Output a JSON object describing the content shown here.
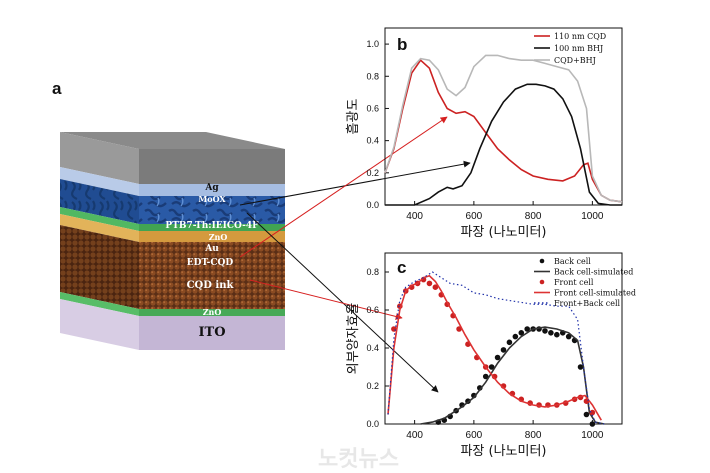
{
  "panel_labels": {
    "a": "a",
    "b": "b",
    "c": "c"
  },
  "stack_layers": [
    {
      "key": "ag",
      "label": "Ag",
      "color": "#8c8c8c",
      "text_color": "#111111"
    },
    {
      "key": "moox",
      "label": "MoOX",
      "color": "#a9bfe2",
      "text_color": "#ffffff"
    },
    {
      "key": "active",
      "label": "PTB7-Th:IEICO-4F",
      "color": "#2b5aa8",
      "text_color": "#ffffff"
    },
    {
      "key": "zno_top",
      "label": "ZnO",
      "color": "#49b45a",
      "text_color": "#ffffff"
    },
    {
      "key": "au",
      "label": "Au",
      "color": "#d9a64a",
      "text_color": "#ffffff"
    },
    {
      "key": "edt",
      "label": "EDT-CQD",
      "color": "#6b3a1f",
      "text_color": "#ffffff"
    },
    {
      "key": "cqd",
      "label": "CQD ink",
      "color": "#6b3a1f",
      "text_color": "#ffffff"
    },
    {
      "key": "zno_bottom",
      "label": "ZnO",
      "color": "#4db85e",
      "text_color": "#ffffff"
    },
    {
      "key": "ito",
      "label": "ITO",
      "color": "#cbbfd9",
      "text_color": "#111111"
    }
  ],
  "chart_data": [
    {
      "id": "b",
      "type": "line",
      "xlabel": "파장 (나노미터)",
      "ylabel": "흡광도",
      "xlim": [
        300,
        1100
      ],
      "ylim": [
        0,
        1.1
      ],
      "xticks": [
        400,
        600,
        800,
        1000
      ],
      "yticks": [
        0,
        0.2,
        0.4,
        0.6,
        0.8,
        1.0
      ],
      "grid": false,
      "legend_position": "top-right",
      "series": [
        {
          "name": "110 nm CQD",
          "color": "#cc2222",
          "style": "solid",
          "x": [
            300,
            330,
            360,
            390,
            420,
            450,
            480,
            510,
            540,
            570,
            600,
            640,
            680,
            720,
            760,
            800,
            850,
            900,
            940,
            970,
            985,
            1000,
            1030,
            1060,
            1100
          ],
          "y": [
            0.2,
            0.35,
            0.6,
            0.82,
            0.9,
            0.85,
            0.7,
            0.6,
            0.57,
            0.58,
            0.55,
            0.45,
            0.35,
            0.28,
            0.22,
            0.18,
            0.16,
            0.15,
            0.18,
            0.25,
            0.26,
            0.16,
            0.06,
            0.03,
            0.02
          ]
        },
        {
          "name": "100 nm BHJ",
          "color": "#111111",
          "style": "solid",
          "x": [
            300,
            400,
            450,
            480,
            510,
            530,
            560,
            590,
            620,
            660,
            700,
            740,
            780,
            810,
            840,
            870,
            900,
            930,
            960,
            990,
            1020,
            1060,
            1100
          ],
          "y": [
            0,
            0,
            0.04,
            0.08,
            0.11,
            0.1,
            0.12,
            0.2,
            0.35,
            0.52,
            0.64,
            0.72,
            0.75,
            0.75,
            0.74,
            0.72,
            0.66,
            0.55,
            0.35,
            0.08,
            0.01,
            0,
            0
          ]
        },
        {
          "name": "CQD+BHJ",
          "color": "#b8b8b8",
          "style": "solid",
          "x": [
            300,
            330,
            360,
            390,
            420,
            450,
            480,
            510,
            540,
            570,
            600,
            640,
            680,
            720,
            760,
            800,
            840,
            880,
            920,
            950,
            980,
            1000,
            1030,
            1060,
            1100
          ],
          "y": [
            0.2,
            0.36,
            0.62,
            0.85,
            0.91,
            0.9,
            0.84,
            0.72,
            0.68,
            0.73,
            0.86,
            0.93,
            0.93,
            0.91,
            0.9,
            0.9,
            0.88,
            0.86,
            0.84,
            0.77,
            0.6,
            0.18,
            0.06,
            0.03,
            0.02
          ]
        }
      ]
    },
    {
      "id": "c",
      "type": "line",
      "xlabel": "파장 (나노미터)",
      "ylabel": "외부양자효율",
      "xlim": [
        300,
        1100
      ],
      "ylim": [
        0,
        0.9
      ],
      "xticks": [
        400,
        600,
        800,
        1000
      ],
      "yticks": [
        0,
        0.2,
        0.4,
        0.6,
        0.8
      ],
      "grid": false,
      "legend_position": "top-right",
      "series": [
        {
          "name": "Back cell",
          "color": "#111111",
          "style": "markers",
          "x": [
            480,
            500,
            520,
            540,
            560,
            580,
            600,
            620,
            640,
            660,
            680,
            700,
            720,
            740,
            760,
            780,
            800,
            820,
            840,
            860,
            880,
            900,
            920,
            940,
            960,
            980,
            1000
          ],
          "y": [
            0.01,
            0.02,
            0.04,
            0.07,
            0.1,
            0.12,
            0.15,
            0.19,
            0.25,
            0.3,
            0.35,
            0.39,
            0.43,
            0.46,
            0.48,
            0.5,
            0.5,
            0.5,
            0.49,
            0.48,
            0.47,
            0.48,
            0.46,
            0.44,
            0.3,
            0.05,
            0.0
          ]
        },
        {
          "name": "Back cell-simulated",
          "color": "#333333",
          "style": "solid",
          "x": [
            420,
            460,
            500,
            530,
            560,
            600,
            640,
            680,
            720,
            760,
            800,
            840,
            880,
            920,
            950,
            970,
            990,
            1010,
            1040
          ],
          "y": [
            0,
            0.01,
            0.03,
            0.06,
            0.09,
            0.14,
            0.22,
            0.32,
            0.4,
            0.46,
            0.5,
            0.51,
            0.5,
            0.48,
            0.44,
            0.3,
            0.06,
            0.01,
            0
          ]
        },
        {
          "name": "Front cell",
          "color": "#cc2222",
          "style": "markers",
          "x": [
            330,
            350,
            370,
            390,
            410,
            430,
            450,
            470,
            490,
            510,
            530,
            550,
            580,
            610,
            640,
            670,
            700,
            730,
            760,
            790,
            820,
            850,
            880,
            910,
            940,
            960,
            980,
            1000
          ],
          "y": [
            0.5,
            0.62,
            0.7,
            0.72,
            0.74,
            0.76,
            0.74,
            0.72,
            0.68,
            0.63,
            0.57,
            0.5,
            0.42,
            0.35,
            0.3,
            0.25,
            0.2,
            0.16,
            0.13,
            0.11,
            0.1,
            0.1,
            0.1,
            0.11,
            0.13,
            0.14,
            0.12,
            0.06
          ]
        },
        {
          "name": "Front cell-simulated",
          "color": "#dd3333",
          "style": "solid",
          "x": [
            310,
            330,
            350,
            370,
            390,
            410,
            430,
            450,
            470,
            490,
            510,
            540,
            570,
            600,
            640,
            680,
            720,
            760,
            800,
            840,
            880,
            920,
            950,
            975,
            1000,
            1030
          ],
          "y": [
            0.05,
            0.4,
            0.6,
            0.7,
            0.73,
            0.74,
            0.77,
            0.78,
            0.75,
            0.7,
            0.64,
            0.56,
            0.47,
            0.39,
            0.3,
            0.22,
            0.16,
            0.12,
            0.1,
            0.09,
            0.1,
            0.12,
            0.14,
            0.15,
            0.1,
            0.02
          ]
        },
        {
          "name": "Front+Back cell",
          "color": "#2233aa",
          "style": "dotted",
          "x": [
            310,
            330,
            350,
            370,
            400,
            430,
            460,
            500,
            520,
            560,
            600,
            640,
            680,
            720,
            760,
            800,
            840,
            880,
            920,
            950,
            970,
            990,
            1010,
            1040
          ],
          "y": [
            0.05,
            0.45,
            0.65,
            0.72,
            0.75,
            0.77,
            0.8,
            0.76,
            0.74,
            0.73,
            0.69,
            0.68,
            0.66,
            0.65,
            0.64,
            0.63,
            0.63,
            0.62,
            0.62,
            0.55,
            0.3,
            0.08,
            0.01,
            0
          ]
        }
      ]
    }
  ],
  "watermark": "노컷뉴스",
  "colors": {
    "arrow_red": "#d62020",
    "arrow_black": "#111111",
    "axis": "#111111"
  }
}
